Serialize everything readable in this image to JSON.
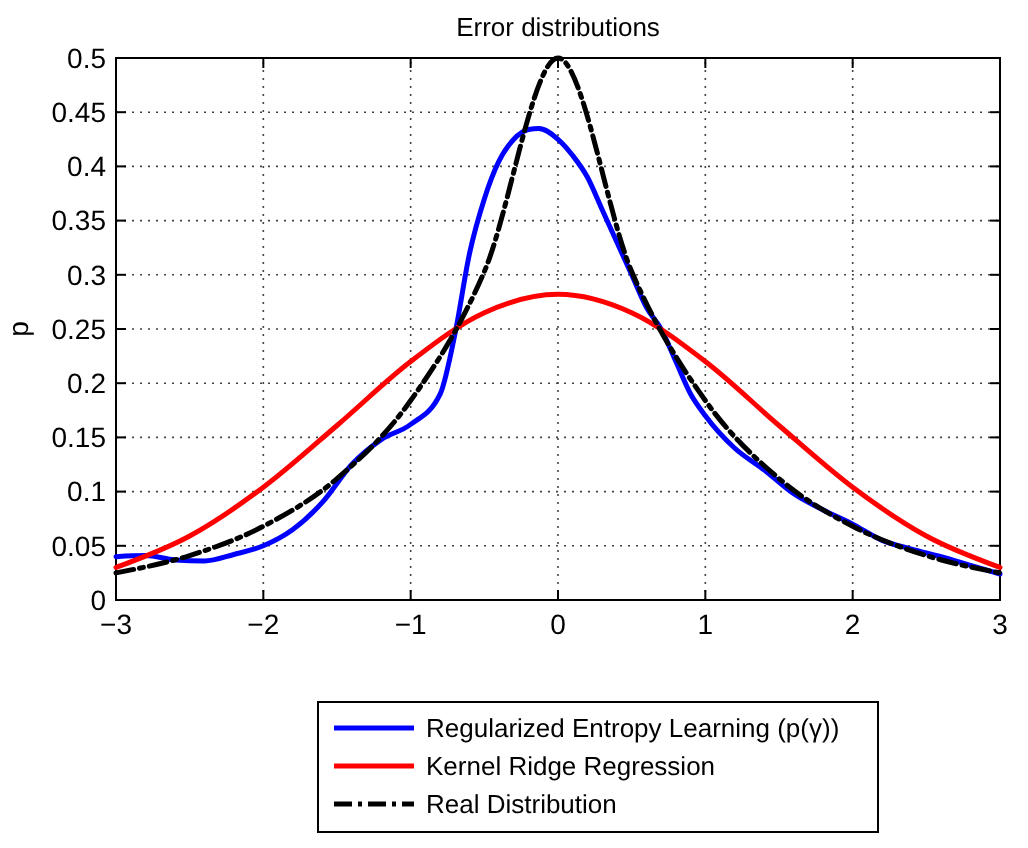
{
  "chart_data": {
    "type": "line",
    "title": "Error distributions",
    "ylabel": "p",
    "xlim": [
      -3,
      3
    ],
    "xticks": [
      -3,
      -2,
      -1,
      0,
      1,
      2,
      3
    ],
    "ylim": [
      0,
      0.5
    ],
    "yticks": [
      0,
      0.05,
      0.1,
      0.15,
      0.2,
      0.25,
      0.3,
      0.35,
      0.4,
      0.45,
      0.5
    ],
    "grid": true,
    "legend": "bottom",
    "series": [
      {
        "name": "Regularized Entropy Learning (p(γ))",
        "color": "#0000ff",
        "line_style": "solid",
        "x": [
          -3,
          -2.8,
          -2.6,
          -2.4,
          -2.2,
          -2,
          -1.8,
          -1.6,
          -1.4,
          -1.2,
          -1,
          -0.8,
          -0.7,
          -0.6,
          -0.5,
          -0.4,
          -0.3,
          -0.2,
          -0.13,
          0,
          0.1,
          0.2,
          0.3,
          0.4,
          0.5,
          0.6,
          0.7,
          0.8,
          0.9,
          1,
          1.2,
          1.4,
          1.6,
          1.8,
          2,
          2.2,
          2.4,
          2.6,
          2.8,
          3
        ],
        "values": [
          0.04,
          0.041,
          0.037,
          0.036,
          0.042,
          0.05,
          0.065,
          0.09,
          0.125,
          0.148,
          0.162,
          0.19,
          0.245,
          0.32,
          0.37,
          0.405,
          0.425,
          0.434,
          0.435,
          0.425,
          0.41,
          0.39,
          0.36,
          0.33,
          0.3,
          0.27,
          0.25,
          0.22,
          0.19,
          0.17,
          0.14,
          0.12,
          0.098,
          0.083,
          0.07,
          0.055,
          0.047,
          0.04,
          0.032,
          0.024
        ]
      },
      {
        "name": "Kernel Ridge Regression",
        "color": "#ff0000",
        "line_style": "solid",
        "x": [
          -3,
          -2.5,
          -2,
          -1.5,
          -1,
          -0.5,
          0,
          0.5,
          1,
          1.5,
          2,
          2.5,
          3
        ],
        "values": [
          0.03,
          0.059,
          0.104,
          0.161,
          0.22,
          0.265,
          0.282,
          0.265,
          0.22,
          0.161,
          0.104,
          0.059,
          0.03
        ]
      },
      {
        "name": "Real Distribution",
        "color": "#000000",
        "line_style": "dashed",
        "x": [
          -3,
          -2.5,
          -2,
          -1.5,
          -1,
          -0.5,
          0,
          0.5,
          1,
          1.5,
          2,
          2.5,
          3
        ],
        "values": [
          0.025,
          0.041,
          0.068,
          0.112,
          0.184,
          0.303,
          0.5,
          0.303,
          0.184,
          0.112,
          0.068,
          0.041,
          0.025
        ]
      }
    ]
  }
}
